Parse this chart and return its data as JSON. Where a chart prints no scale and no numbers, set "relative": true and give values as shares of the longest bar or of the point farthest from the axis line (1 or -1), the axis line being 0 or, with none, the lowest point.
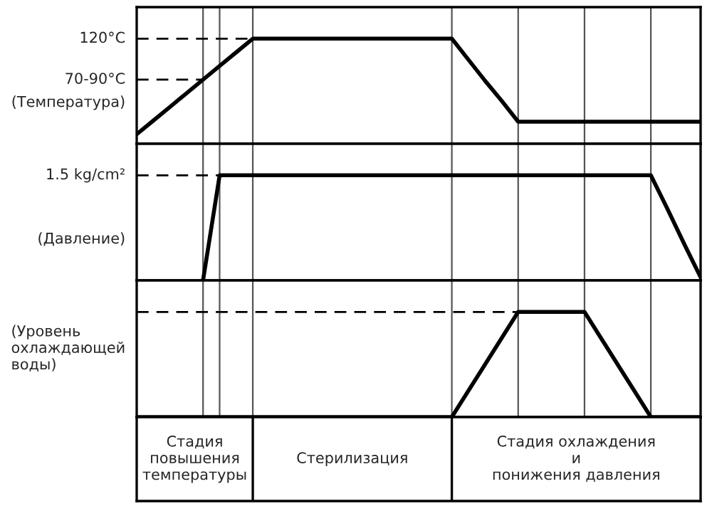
{
  "chart_data": [
    {
      "type": "line",
      "relative": true,
      "ylabel": "(Температура)",
      "grid": "x",
      "categories": [
        null,
        null,
        null,
        null,
        null,
        null,
        null,
        null,
        null,
        null,
        null,
        null,
        null,
        null,
        null,
        null,
        null,
        null,
        null,
        null,
        null,
        null,
        null,
        null,
        null,
        null,
        null,
        null,
        null,
        null,
        null,
        null,
        null,
        null,
        null
      ],
      "series": [
        {
          "color": "#000000",
          "values": [
            0.09,
            0.22,
            0.35,
            0.48,
            0.61,
            0.74,
            0.87,
            1,
            1,
            1,
            1,
            1,
            1,
            1,
            1,
            1,
            1,
            1,
            1,
            1,
            0.8,
            0.6,
            0.41,
            0.21,
            0.21,
            0.21,
            0.21,
            0.21,
            0.21,
            0.21,
            0.21,
            0.21,
            0.21,
            0.21,
            0.21
          ]
        }
      ],
      "ref_lines": [
        {
          "axis": "y",
          "value": 1,
          "label": "120°C",
          "line_style": "dashed"
        },
        {
          "axis": "y",
          "value": 0.61,
          "label": "70-90°C",
          "line_style": "dashed"
        }
      ]
    },
    {
      "type": "line",
      "relative": true,
      "ylabel": "(Давление)",
      "grid": "x",
      "categories": [
        null,
        null,
        null,
        null,
        null,
        null,
        null,
        null,
        null,
        null,
        null,
        null,
        null,
        null,
        null,
        null,
        null,
        null,
        null,
        null,
        null,
        null,
        null,
        null,
        null,
        null,
        null,
        null,
        null,
        null,
        null,
        null,
        null,
        null,
        null
      ],
      "series": [
        {
          "color": "#000000",
          "values": [
            null,
            null,
            null,
            null,
            0,
            1,
            1,
            1,
            1,
            1,
            1,
            1,
            1,
            1,
            1,
            1,
            1,
            1,
            1,
            1,
            1,
            1,
            1,
            1,
            1,
            1,
            1,
            1,
            1,
            1,
            1,
            1,
            0.68,
            0.35,
            0.03
          ]
        }
      ],
      "ref_lines": [
        {
          "axis": "y",
          "value": 1,
          "label": "1.5 kg/cm²",
          "line_style": "dashed"
        }
      ]
    },
    {
      "type": "line",
      "relative": true,
      "ylabel": "(Уровень\nохлаждающей\nводы)",
      "grid": "x",
      "categories": [
        null,
        null,
        null,
        null,
        null,
        null,
        null,
        null,
        null,
        null,
        null,
        null,
        null,
        null,
        null,
        null,
        null,
        null,
        null,
        null,
        null,
        null,
        null,
        null,
        null,
        null,
        null,
        null,
        null,
        null,
        null,
        null,
        null,
        null,
        null
      ],
      "series": [
        {
          "color": "#000000",
          "values": [
            0,
            0,
            0,
            0,
            0,
            0,
            0,
            0,
            0,
            0,
            0,
            0,
            0,
            0,
            0,
            0,
            0,
            0,
            0,
            0,
            0.25,
            0.5,
            0.75,
            1,
            1,
            1,
            1,
            1,
            0.75,
            0.5,
            0.25,
            0,
            0,
            0,
            0
          ]
        }
      ],
      "ref_lines": [
        {
          "axis": "y",
          "value": 1,
          "label": null,
          "line_style": "dashed"
        }
      ]
    },
    {
      "type": "other",
      "annotations": [
        "Стадия\nповышения\nтемпературы",
        "Стерилизация",
        "Стадия охлаждения\nи\nпонижения давления"
      ]
    }
  ]
}
